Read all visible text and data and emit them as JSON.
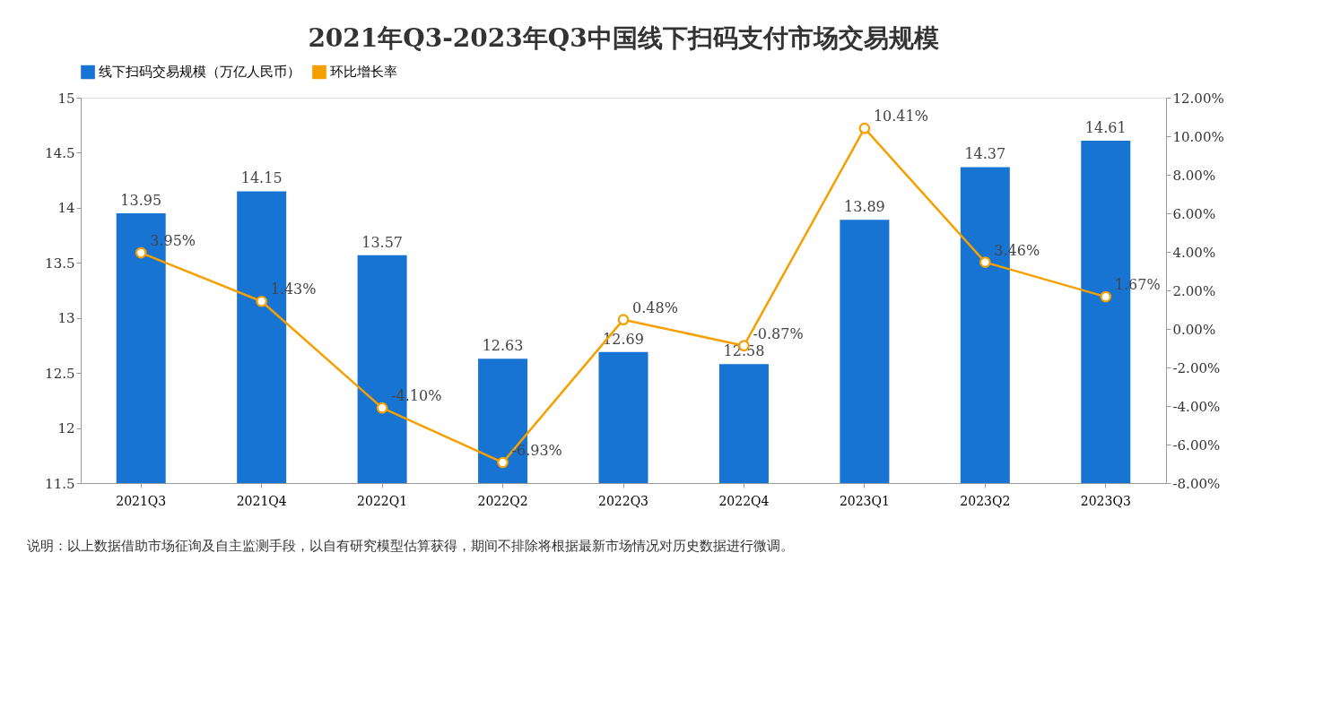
{
  "chart_data": {
    "type": "bar",
    "title": "2021年Q3-2023年Q3中国线下扫码支付市场交易规模",
    "categories": [
      "2021Q3",
      "2021Q4",
      "2022Q1",
      "2022Q2",
      "2022Q3",
      "2022Q4",
      "2023Q1",
      "2023Q2",
      "2023Q3"
    ],
    "series": [
      {
        "name": "线下扫码交易规模（万亿人民币）",
        "color": "#1874d2",
        "values": [
          13.95,
          14.15,
          13.57,
          12.63,
          12.69,
          12.58,
          13.89,
          14.37,
          14.61
        ],
        "value_labels": [
          "13.95",
          "14.15",
          "13.57",
          "12.63",
          "12.69",
          "12.58",
          "13.89",
          "14.37",
          "14.61"
        ]
      },
      {
        "name": "环比增长率",
        "type": "line",
        "axis": "y2",
        "color": "#f5a000",
        "values": [
          3.95,
          1.43,
          -4.1,
          -6.93,
          0.48,
          -0.87,
          10.41,
          3.46,
          1.67
        ],
        "value_labels": [
          "3.95%",
          "1.43%",
          "-4.10%",
          "-6.93%",
          "0.48%",
          "-0.87%",
          "10.41%",
          "3.46%",
          "1.67%"
        ]
      }
    ],
    "ylim": [
      11.5,
      15
    ],
    "yticks": [
      11.5,
      12,
      12.5,
      13,
      13.5,
      14,
      14.5,
      15
    ],
    "y2lim": [
      -8,
      12
    ],
    "y2ticks": [
      {
        "value": -8,
        "label": "-8.00%"
      },
      {
        "value": -6,
        "label": "-6.00%"
      },
      {
        "value": -4,
        "label": "-4.00%"
      },
      {
        "value": -2,
        "label": "-2.00%"
      },
      {
        "value": 0,
        "label": "0.00%"
      },
      {
        "value": 2,
        "label": "2.00%"
      },
      {
        "value": 4,
        "label": "4.00%"
      },
      {
        "value": 6,
        "label": "6.00%"
      },
      {
        "value": 8,
        "label": "8.00%"
      },
      {
        "value": 10,
        "label": "10.00%"
      },
      {
        "value": 12,
        "label": "12.00%"
      }
    ],
    "grid": false,
    "legend": "top",
    "marker": "circle",
    "line_style": "solid",
    "annotations": [
      "说明：以上数据借助市场征询及自主监测手段，以自有研究模型估算获得，期间不排除将根据最新市场情况对历史数据进行微调。"
    ]
  }
}
